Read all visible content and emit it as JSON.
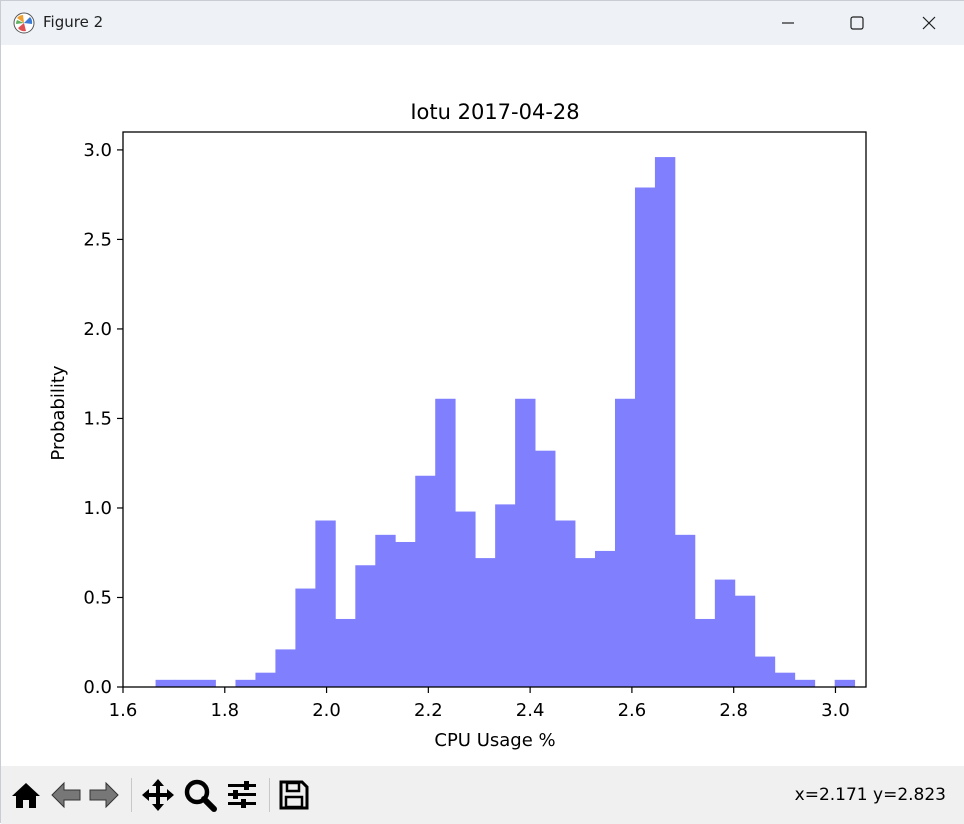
{
  "window": {
    "title": "Figure 2",
    "controls": {
      "minimize": "minimize-icon",
      "maximize": "maximize-icon",
      "close": "close-icon"
    }
  },
  "toolbar": {
    "icons": [
      "home-icon",
      "back-arrow-icon",
      "forward-arrow-icon",
      "pan-move-icon",
      "zoom-icon",
      "configure-subplots-icon",
      "save-icon"
    ],
    "coords": "x=2.171 y=2.823"
  },
  "colors": {
    "bar": "#8080ff",
    "titlebar": "#eef2f7",
    "toolbar": "#f0f0f0"
  },
  "chart_data": {
    "type": "bar",
    "title": "Iotu 2017-04-28",
    "xlabel": "CPU Usage %",
    "ylabel": "Probability",
    "xlim": [
      1.6,
      3.06
    ],
    "ylim": [
      0,
      3.1
    ],
    "xticks": [
      "1.6",
      "1.8",
      "2.0",
      "2.2",
      "2.4",
      "2.6",
      "2.8",
      "3.0"
    ],
    "yticks": [
      "0.0",
      "0.5",
      "1.0",
      "1.5",
      "2.0",
      "2.5",
      "3.0"
    ],
    "bin_start": 1.664,
    "bin_width": 0.03925,
    "values": [
      0.04,
      0.04,
      0.04,
      0.0,
      0.04,
      0.08,
      0.21,
      0.55,
      0.93,
      0.38,
      0.68,
      0.85,
      0.81,
      1.18,
      1.61,
      0.98,
      0.72,
      1.02,
      1.61,
      1.32,
      0.93,
      0.72,
      0.76,
      1.61,
      2.79,
      2.96,
      0.85,
      0.38,
      0.6,
      0.51,
      0.17,
      0.08,
      0.04,
      0.0,
      0.04
    ]
  }
}
